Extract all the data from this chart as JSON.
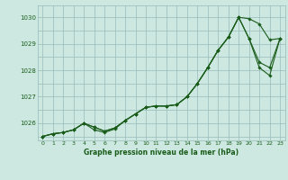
{
  "title": "Graphe pression niveau de la mer (hPa)",
  "bg_color": "#cce8e0",
  "grid_color": "#99bbbb",
  "line_color": "#1a5c1a",
  "marker_color": "#1a5c1a",
  "xlim": [
    -0.5,
    23.5
  ],
  "ylim": [
    1025.35,
    1030.45
  ],
  "yticks": [
    1026,
    1027,
    1028,
    1029,
    1030
  ],
  "xticks": [
    0,
    1,
    2,
    3,
    4,
    5,
    6,
    7,
    8,
    9,
    10,
    11,
    12,
    13,
    14,
    15,
    16,
    17,
    18,
    19,
    20,
    21,
    22,
    23
  ],
  "series": [
    [
      1025.5,
      1025.6,
      1025.65,
      1025.75,
      1026.0,
      1025.85,
      1025.7,
      1025.82,
      1026.1,
      1026.35,
      1026.6,
      1026.65,
      1026.65,
      1026.7,
      1027.0,
      1027.5,
      1028.1,
      1028.75,
      1029.25,
      1030.0,
      1029.95,
      1029.75,
      1029.15,
      1029.2
    ],
    [
      1025.5,
      1025.6,
      1025.65,
      1025.75,
      1026.0,
      1025.85,
      1025.7,
      1025.82,
      1026.1,
      1026.35,
      1026.6,
      1026.65,
      1026.65,
      1026.7,
      1027.0,
      1027.5,
      1028.1,
      1028.75,
      1029.25,
      1030.0,
      1029.2,
      1028.3,
      1028.1,
      1029.2
    ],
    [
      1025.5,
      1025.6,
      1025.65,
      1025.75,
      1026.0,
      1025.75,
      1025.65,
      1025.78,
      1026.1,
      1026.35,
      1026.6,
      1026.65,
      1026.65,
      1026.7,
      1027.0,
      1027.5,
      1028.1,
      1028.75,
      1029.25,
      1030.0,
      1029.2,
      1028.1,
      1027.8,
      1029.2
    ]
  ]
}
